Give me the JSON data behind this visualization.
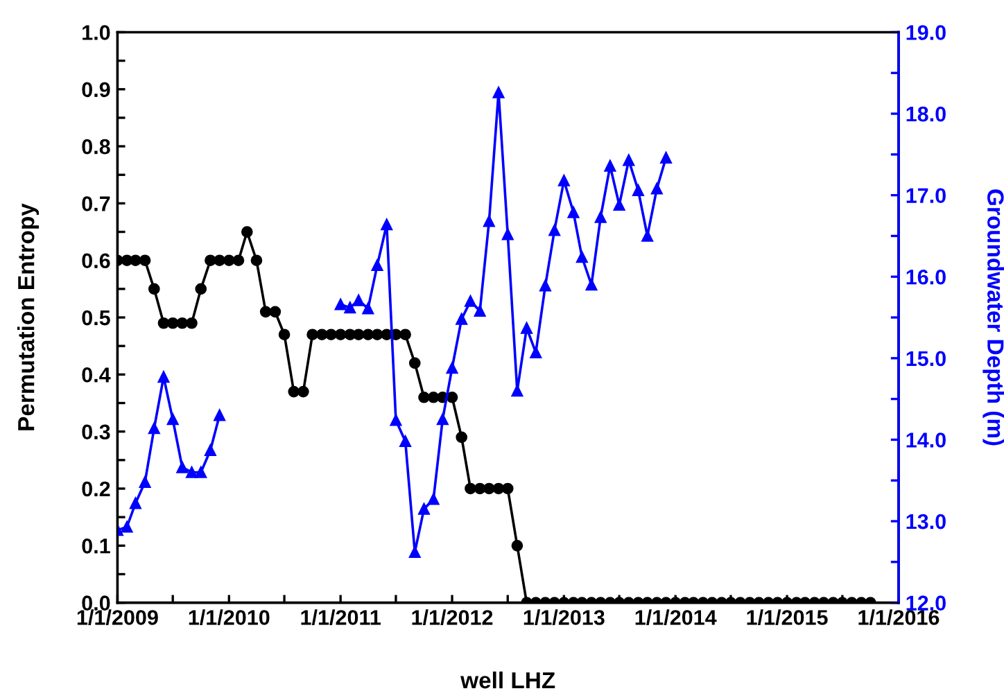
{
  "chart_data": {
    "type": "line",
    "xlabel": "well LHZ",
    "ylabel": "Permutation Entropy",
    "y2label": "Groundwater Depth (m)",
    "xlim": [
      "2009-01-01",
      "2016-01-01"
    ],
    "xticks": [
      {
        "value": "2009-01-01",
        "label": "1/1/2009"
      },
      {
        "value": "2009-07-01",
        "label": null
      },
      {
        "value": "2010-01-01",
        "label": "1/1/2010"
      },
      {
        "value": "2010-07-01",
        "label": null
      },
      {
        "value": "2011-01-01",
        "label": "1/1/2011"
      },
      {
        "value": "2011-07-01",
        "label": null
      },
      {
        "value": "2012-01-01",
        "label": "1/1/2012"
      },
      {
        "value": "2012-07-01",
        "label": null
      },
      {
        "value": "2013-01-01",
        "label": "1/1/2013"
      },
      {
        "value": "2013-07-01",
        "label": null
      },
      {
        "value": "2014-01-01",
        "label": "1/1/2014"
      },
      {
        "value": "2014-07-01",
        "label": null
      },
      {
        "value": "2015-01-01",
        "label": "1/1/2015"
      },
      {
        "value": "2015-07-01",
        "label": null
      },
      {
        "value": "2016-01-01",
        "label": "1/1/2016"
      }
    ],
    "ylim": [
      0,
      1
    ],
    "yticks": [
      {
        "value": 0,
        "label": "0.0"
      },
      {
        "value": 0.05,
        "label": null
      },
      {
        "value": 0.1,
        "label": "0.1"
      },
      {
        "value": 0.15,
        "label": null
      },
      {
        "value": 0.2,
        "label": "0.2"
      },
      {
        "value": 0.25,
        "label": null
      },
      {
        "value": 0.3,
        "label": "0.3"
      },
      {
        "value": 0.35,
        "label": null
      },
      {
        "value": 0.4,
        "label": "0.4"
      },
      {
        "value": 0.45,
        "label": null
      },
      {
        "value": 0.5,
        "label": "0.5"
      },
      {
        "value": 0.55,
        "label": null
      },
      {
        "value": 0.6,
        "label": "0.6"
      },
      {
        "value": 0.65,
        "label": null
      },
      {
        "value": 0.7,
        "label": "0.7"
      },
      {
        "value": 0.75,
        "label": null
      },
      {
        "value": 0.8,
        "label": "0.8"
      },
      {
        "value": 0.85,
        "label": null
      },
      {
        "value": 0.9,
        "label": "0.9"
      },
      {
        "value": 0.95,
        "label": null
      },
      {
        "value": 1,
        "label": "1.0"
      }
    ],
    "y2lim": [
      12,
      19
    ],
    "y2ticks": [
      {
        "value": 12,
        "label": "12.0"
      },
      {
        "value": 12.5,
        "label": null
      },
      {
        "value": 13,
        "label": "13.0"
      },
      {
        "value": 13.5,
        "label": null
      },
      {
        "value": 14,
        "label": "14.0"
      },
      {
        "value": 14.5,
        "label": null
      },
      {
        "value": 15,
        "label": "15.0"
      },
      {
        "value": 15.5,
        "label": null
      },
      {
        "value": 16,
        "label": "16.0"
      },
      {
        "value": 16.5,
        "label": null
      },
      {
        "value": 17,
        "label": "17.0"
      },
      {
        "value": 17.5,
        "label": null
      },
      {
        "value": 18,
        "label": "18.0"
      },
      {
        "value": 18.5,
        "label": null
      },
      {
        "value": 19,
        "label": "19.0"
      }
    ],
    "grid": false,
    "legend": false,
    "line_style": "solid",
    "series": [
      {
        "color": "#000000",
        "marker": "circle",
        "x": [
          "2009-01",
          "2009-02",
          "2009-03",
          "2009-04",
          "2009-05",
          "2009-06",
          "2009-07",
          "2009-08",
          "2009-09",
          "2009-10",
          "2009-11",
          "2009-12",
          "2010-01",
          "2010-02",
          "2010-03",
          "2010-04",
          "2010-05",
          "2010-06",
          "2010-07",
          "2010-08",
          "2010-09",
          "2010-10",
          "2010-11",
          "2010-12",
          "2011-01",
          "2011-02",
          "2011-03",
          "2011-04",
          "2011-05",
          "2011-06",
          "2011-07",
          "2011-08",
          "2011-09",
          "2011-10",
          "2011-11",
          "2011-12",
          "2012-01",
          "2012-02",
          "2012-03",
          "2012-04",
          "2012-05",
          "2012-06",
          "2012-07",
          "2012-08",
          "2012-09",
          "2012-10",
          "2012-11",
          "2012-12",
          "2013-01",
          "2013-02",
          "2013-03",
          "2013-04",
          "2013-05",
          "2013-06",
          "2013-07",
          "2013-08",
          "2013-09",
          "2013-10",
          "2013-11",
          "2013-12",
          "2014-01",
          "2014-02",
          "2014-03",
          "2014-04",
          "2014-05",
          "2014-06",
          "2014-07",
          "2014-08",
          "2014-09",
          "2014-10",
          "2014-11",
          "2014-12",
          "2015-01",
          "2015-02",
          "2015-03",
          "2015-04",
          "2015-05",
          "2015-06",
          "2015-07",
          "2015-08",
          "2015-09",
          "2015-10"
        ],
        "values": [
          0.6,
          0.6,
          0.6,
          0.6,
          0.55,
          0.49,
          0.49,
          0.49,
          0.49,
          0.55,
          0.6,
          0.6,
          0.6,
          0.6,
          0.65,
          0.6,
          0.51,
          0.51,
          0.47,
          0.37,
          0.37,
          0.47,
          0.47,
          0.47,
          0.47,
          0.47,
          0.47,
          0.47,
          0.47,
          0.47,
          0.47,
          0.47,
          0.42,
          0.36,
          0.36,
          0.36,
          0.36,
          0.29,
          0.2,
          0.2,
          0.2,
          0.2,
          0.2,
          0.1,
          0,
          0,
          0,
          0,
          0,
          0,
          0,
          0,
          0,
          0,
          0,
          0,
          0,
          0,
          0,
          0,
          0,
          0,
          0,
          0,
          0,
          0,
          0,
          0,
          0,
          0,
          0,
          0,
          0,
          0,
          0,
          0,
          0,
          0,
          0,
          0,
          0,
          0
        ]
      },
      {
        "color": "#0000ff",
        "marker": "triangle",
        "axis": "y2",
        "x": [
          "2009-01",
          "2009-02",
          "2009-03",
          "2009-04",
          "2009-05",
          "2009-06",
          "2009-07",
          "2009-08",
          "2009-09",
          "2009-10",
          "2009-11",
          "2009-12",
          "2010-01",
          "2010-02",
          "2010-03",
          "2010-04",
          "2010-05",
          "2010-06",
          "2010-07",
          "2010-08",
          "2010-09",
          "2010-10",
          "2010-11",
          "2010-12",
          "2011-01",
          "2011-02",
          "2011-03",
          "2011-04",
          "2011-05",
          "2011-06",
          "2011-07",
          "2011-08",
          "2011-09",
          "2011-10",
          "2011-11",
          "2011-12",
          "2012-01",
          "2012-02",
          "2012-03",
          "2012-04",
          "2012-05",
          "2012-06",
          "2012-07",
          "2012-08",
          "2012-09",
          "2012-10",
          "2012-11",
          "2012-12",
          "2013-01",
          "2013-02",
          "2013-03",
          "2013-04",
          "2013-05",
          "2013-06",
          "2013-07",
          "2013-08",
          "2013-09",
          "2013-10",
          "2013-11",
          "2013-12"
        ],
        "values": [
          12.89,
          12.93,
          13.22,
          13.48,
          14.14,
          14.77,
          14.25,
          13.66,
          13.6,
          13.6,
          13.87,
          14.3,
          null,
          null,
          null,
          null,
          null,
          null,
          null,
          null,
          null,
          null,
          null,
          null,
          15.66,
          15.62,
          15.71,
          15.61,
          16.14,
          16.64,
          14.24,
          13.98,
          12.62,
          13.15,
          13.27,
          14.25,
          14.88,
          15.48,
          15.7,
          15.58,
          16.68,
          18.26,
          16.52,
          14.6,
          15.37,
          15.07,
          15.89,
          16.57,
          17.18,
          16.79,
          16.24,
          15.9,
          16.73,
          17.36,
          16.88,
          17.43,
          17.06,
          16.5,
          17.08,
          17.46
        ]
      }
    ]
  }
}
